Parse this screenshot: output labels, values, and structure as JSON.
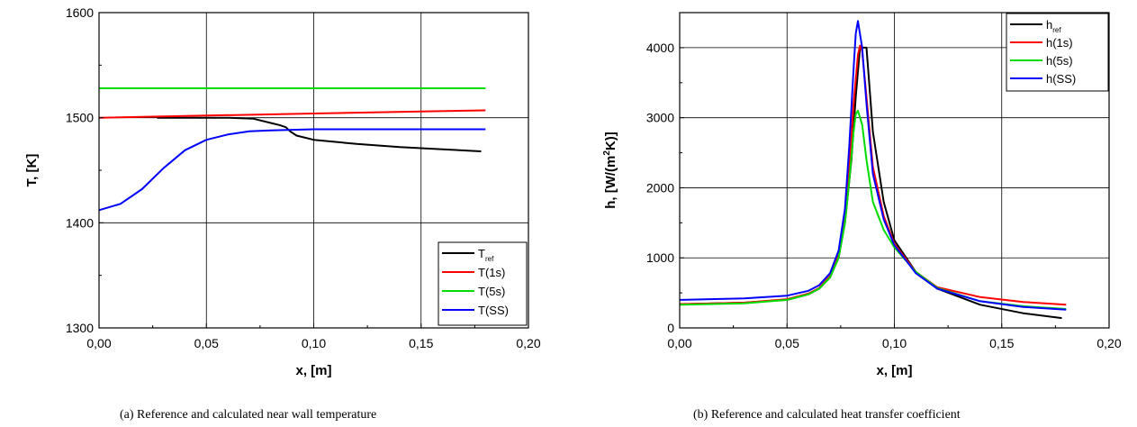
{
  "chart_data": [
    {
      "type": "line",
      "xlabel": "x, [m]",
      "ylabel": "T, [K]",
      "xlim": [
        0,
        0.2
      ],
      "ylim": [
        1300,
        1600
      ],
      "xticks": [
        "0,00",
        "0,05",
        "0,10",
        "0,15",
        "0,20"
      ],
      "yticks": [
        "1300",
        "1400",
        "1500",
        "1600"
      ],
      "grid": true,
      "legend_position": "bottom-right",
      "caption": "(a)  Reference and calculated near wall temperature",
      "series": [
        {
          "name": "T",
          "name_sub": "ref",
          "color": "#000000",
          "x": [
            0.027,
            0.04,
            0.06,
            0.072,
            0.076,
            0.08,
            0.084,
            0.087,
            0.089,
            0.092,
            0.1,
            0.12,
            0.14,
            0.16,
            0.178
          ],
          "y": [
            1500,
            1500,
            1500,
            1499,
            1497,
            1495,
            1493,
            1491,
            1487,
            1483,
            1479,
            1475,
            1472,
            1470,
            1468
          ]
        },
        {
          "name": "T(1s)",
          "color": "#ff0000",
          "x": [
            0,
            0.05,
            0.1,
            0.15,
            0.18
          ],
          "y": [
            1500,
            1502,
            1504,
            1506,
            1507
          ]
        },
        {
          "name": "T(5s)",
          "color": "#00dd00",
          "x": [
            0,
            0.18
          ],
          "y": [
            1528,
            1528
          ]
        },
        {
          "name": "T(SS)",
          "color": "#0000ff",
          "x": [
            0,
            0.01,
            0.02,
            0.03,
            0.04,
            0.05,
            0.06,
            0.07,
            0.08,
            0.09,
            0.1,
            0.12,
            0.15,
            0.18
          ],
          "y": [
            1412,
            1418,
            1432,
            1452,
            1469,
            1479,
            1484,
            1487,
            1488,
            1488.5,
            1489,
            1489,
            1489,
            1489
          ]
        }
      ]
    },
    {
      "type": "line",
      "xlabel": "x, [m]",
      "ylabel_pre": "h, [W/(m",
      "ylabel_sup": "2",
      "ylabel_post": "K)]",
      "xlim": [
        0,
        0.2
      ],
      "ylim": [
        0,
        4500
      ],
      "xticks": [
        "0,00",
        "0,05",
        "0,10",
        "0,15",
        "0,20"
      ],
      "yticks": [
        "0",
        "1000",
        "2000",
        "3000",
        "4000"
      ],
      "grid": true,
      "legend_position": "top-right",
      "caption": "(b)  Reference and calculated heat transfer coefficient",
      "series": [
        {
          "name": "h",
          "name_sub": "ref",
          "color": "#000000",
          "x": [
            0,
            0.03,
            0.05,
            0.06,
            0.065,
            0.07,
            0.074,
            0.077,
            0.08,
            0.082,
            0.084,
            0.085,
            0.086,
            0.087,
            0.088,
            0.09,
            0.095,
            0.1,
            0.11,
            0.12,
            0.14,
            0.16,
            0.178
          ],
          "y": [
            340,
            360,
            400,
            480,
            560,
            720,
            1000,
            1500,
            2400,
            3300,
            4000,
            4000,
            4000,
            4000,
            3600,
            2800,
            1800,
            1250,
            800,
            560,
            330,
            210,
            140
          ]
        },
        {
          "name": "h(1s)",
          "color": "#ff0000",
          "x": [
            0,
            0.03,
            0.05,
            0.06,
            0.065,
            0.07,
            0.074,
            0.077,
            0.079,
            0.081,
            0.083,
            0.084,
            0.085,
            0.087,
            0.09,
            0.095,
            0.1,
            0.11,
            0.12,
            0.14,
            0.16,
            0.18
          ],
          "y": [
            340,
            360,
            410,
            490,
            570,
            740,
            1050,
            1600,
            2300,
            3200,
            3900,
            4030,
            3950,
            3300,
            2300,
            1600,
            1200,
            800,
            580,
            440,
            370,
            330
          ]
        },
        {
          "name": "h(5s)",
          "color": "#00dd00",
          "x": [
            0,
            0.03,
            0.05,
            0.06,
            0.065,
            0.07,
            0.074,
            0.077,
            0.079,
            0.081,
            0.082,
            0.083,
            0.085,
            0.087,
            0.09,
            0.095,
            0.1,
            0.11,
            0.12,
            0.14,
            0.16,
            0.18
          ],
          "y": [
            330,
            350,
            400,
            480,
            560,
            720,
            1000,
            1500,
            2100,
            2800,
            3050,
            3100,
            2900,
            2400,
            1800,
            1400,
            1150,
            800,
            570,
            380,
            310,
            270
          ]
        },
        {
          "name": "h(SS)",
          "color": "#0000ff",
          "x": [
            0,
            0.03,
            0.05,
            0.06,
            0.065,
            0.07,
            0.074,
            0.077,
            0.079,
            0.081,
            0.082,
            0.083,
            0.085,
            0.087,
            0.09,
            0.095,
            0.1,
            0.11,
            0.12,
            0.14,
            0.16,
            0.18
          ],
          "y": [
            400,
            420,
            460,
            530,
            610,
            780,
            1100,
            1700,
            2600,
            3700,
            4200,
            4380,
            4000,
            3200,
            2200,
            1550,
            1180,
            780,
            560,
            380,
            300,
            260
          ]
        }
      ]
    }
  ]
}
